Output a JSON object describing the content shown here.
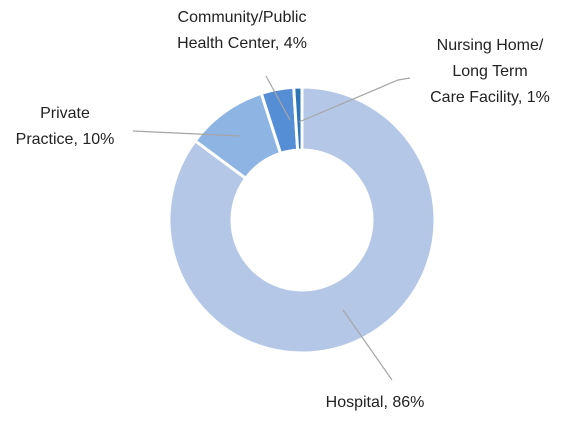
{
  "chart_data": {
    "type": "donut",
    "values": [
      86,
      10,
      4,
      1
    ],
    "value_labels": [
      [
        "Hospital, 86%"
      ],
      [
        "Private",
        "Practice, 10%"
      ],
      [
        "Community/Public",
        "Health Center, 4%"
      ],
      [
        "Nursing Home/",
        "Long Term",
        "Care Facility, 1%"
      ]
    ],
    "colors": [
      "#b4c7e7",
      "#8eb4e3",
      "#558ed5",
      "#2e75b6"
    ]
  }
}
